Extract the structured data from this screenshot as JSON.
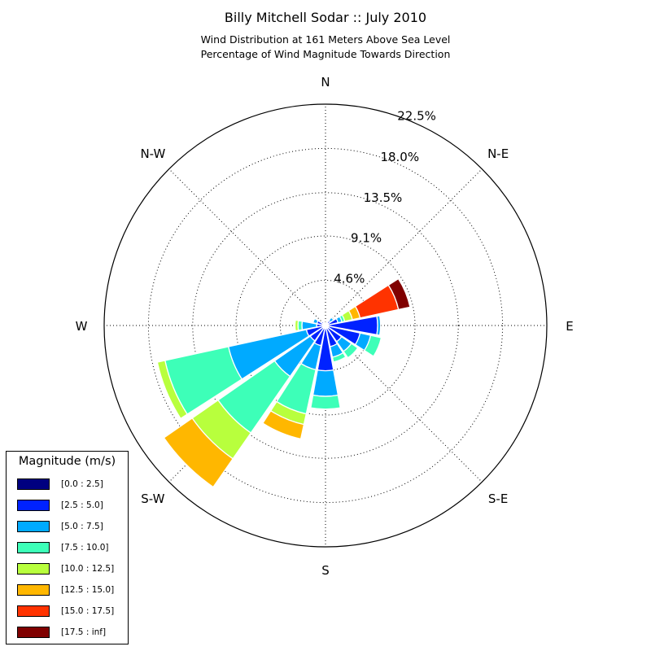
{
  "chart_data": {
    "type": "windrose",
    "title": "Billy Mitchell Sodar :: July 2010",
    "subtitle_lines": [
      "Wind Distribution at 161 Meters Above Sea Level",
      "Percentage of Wind Magnitude Towards Direction"
    ],
    "direction_labels": [
      "N",
      "N-E",
      "E",
      "S-E",
      "S",
      "S-W",
      "W",
      "N-W"
    ],
    "radial_tick_labels": [
      "4.6%",
      "9.1%",
      "13.5%",
      "18.0%",
      "22.5%"
    ],
    "radial_ticks": [
      4.6,
      9.1,
      13.5,
      18.0,
      22.5
    ],
    "rmax": 22.5,
    "legend_title": "Magnitude (m/s)",
    "bins": [
      {
        "label": "[0.0 : 2.5]",
        "color": "#000080"
      },
      {
        "label": "[2.5 : 5.0]",
        "color": "#0022ff"
      },
      {
        "label": "[5.0 : 7.5]",
        "color": "#00aaff"
      },
      {
        "label": "[7.5 : 10.0]",
        "color": "#3dffb8"
      },
      {
        "label": "[10.0 : 12.5]",
        "color": "#b8ff3d"
      },
      {
        "label": "[12.5 : 15.0]",
        "color": "#ffb700"
      },
      {
        "label": "[15.0 : 17.5]",
        "color": "#ff3300"
      },
      {
        "label": "[17.5 : inf]",
        "color": "#800000"
      }
    ],
    "sectors": [
      {
        "direction": 0,
        "values": [
          0.2,
          0.1,
          0.0,
          0.0,
          0.0,
          0.0,
          0.0,
          0.0
        ]
      },
      {
        "direction": 22.5,
        "values": [
          0.2,
          0.2,
          0.1,
          0.0,
          0.0,
          0.0,
          0.0,
          0.0
        ]
      },
      {
        "direction": 45,
        "values": [
          0.3,
          0.3,
          0.4,
          0.0,
          0.0,
          0.0,
          0.0,
          0.0
        ]
      },
      {
        "direction": 67.5,
        "values": [
          0.3,
          1.0,
          0.4,
          0.3,
          0.8,
          0.8,
          4.0,
          1.2
        ]
      },
      {
        "direction": 90,
        "values": [
          0.3,
          5.0,
          0.3,
          0.0,
          0.0,
          0.0,
          0.0,
          0.0
        ]
      },
      {
        "direction": 112.5,
        "values": [
          0.3,
          3.3,
          1.1,
          1.1,
          0.0,
          0.0,
          0.0,
          0.0
        ]
      },
      {
        "direction": 135,
        "values": [
          0.3,
          1.7,
          1.2,
          0.8,
          0.0,
          0.0,
          0.0,
          0.0
        ]
      },
      {
        "direction": 157.5,
        "values": [
          0.3,
          1.9,
          1.1,
          0.5,
          0.0,
          0.0,
          0.0,
          0.0
        ]
      },
      {
        "direction": 180,
        "values": [
          0.3,
          4.3,
          2.6,
          1.3,
          0.0,
          0.0,
          0.0,
          0.0
        ]
      },
      {
        "direction": 202.5,
        "values": [
          0.3,
          1.8,
          2.5,
          4.6,
          1.1,
          1.5,
          0.0,
          0.0
        ]
      },
      {
        "direction": 225,
        "values": [
          0.3,
          1.6,
          4.4,
          7.0,
          3.2,
          3.5,
          0.0,
          0.0
        ]
      },
      {
        "direction": 247.5,
        "values": [
          0.3,
          1.7,
          8.1,
          6.6,
          0.8,
          0.0,
          0.0,
          0.0
        ]
      },
      {
        "direction": 270,
        "values": [
          0.3,
          0.6,
          1.5,
          0.4,
          0.3,
          0.0,
          0.0,
          0.0
        ]
      },
      {
        "direction": 292.5,
        "values": [
          0.3,
          0.6,
          0.4,
          0.0,
          0.0,
          0.0,
          0.0,
          0.0
        ]
      },
      {
        "direction": 315,
        "values": [
          0.3,
          0.2,
          0.0,
          0.0,
          0.0,
          0.0,
          0.0,
          0.0
        ]
      },
      {
        "direction": 337.5,
        "values": [
          0.2,
          0.1,
          0.0,
          0.0,
          0.0,
          0.0,
          0.0,
          0.0
        ]
      }
    ]
  }
}
